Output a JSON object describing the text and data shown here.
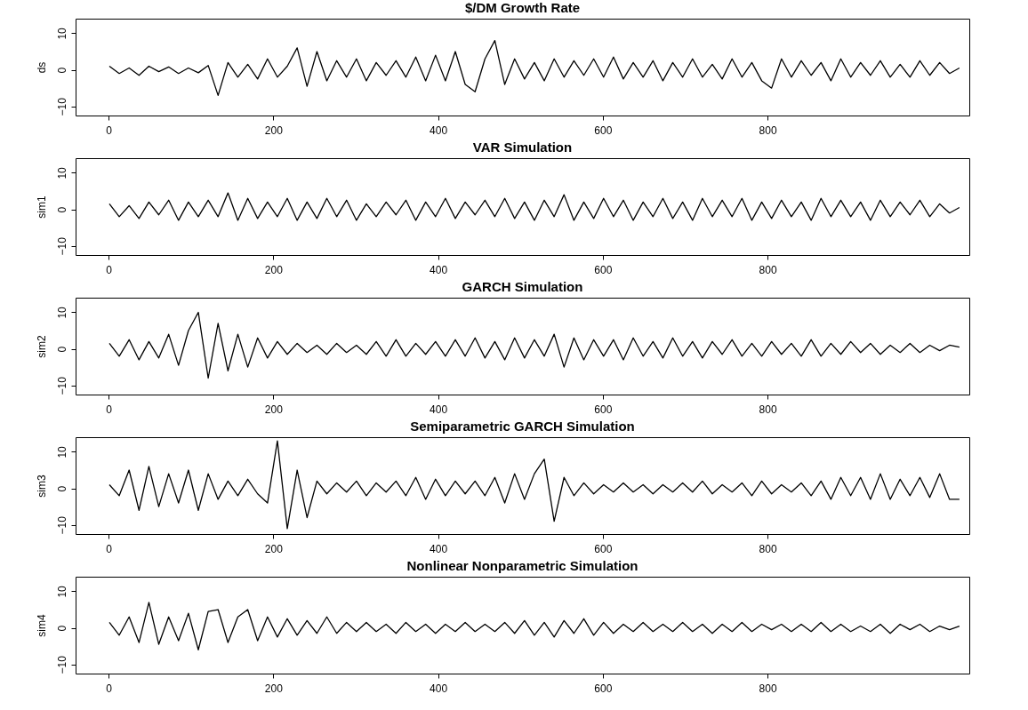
{
  "chart_data": [
    {
      "type": "line",
      "title": "$/DM Growth Rate",
      "ylabel": "ds",
      "color": "#000000",
      "xlim": [
        -40,
        1045
      ],
      "xticks": [
        0,
        200,
        400,
        600,
        800
      ],
      "ylim": [
        -12.5,
        14
      ],
      "yticks": [
        -10,
        0,
        10
      ],
      "x": [
        1,
        13,
        25,
        37,
        49,
        61,
        73,
        85,
        97,
        109,
        121,
        133,
        145,
        157,
        169,
        181,
        193,
        205,
        217,
        229,
        241,
        253,
        265,
        277,
        289,
        301,
        313,
        325,
        337,
        349,
        361,
        373,
        385,
        397,
        409,
        421,
        433,
        445,
        457,
        469,
        481,
        493,
        505,
        517,
        529,
        541,
        553,
        565,
        577,
        589,
        601,
        613,
        625,
        637,
        649,
        661,
        673,
        685,
        697,
        709,
        721,
        733,
        745,
        757,
        769,
        781,
        793,
        805,
        817,
        829,
        841,
        853,
        865,
        877,
        889,
        901,
        913,
        925,
        937,
        949,
        961,
        973,
        985,
        997,
        1009,
        1021,
        1033
      ],
      "values": [
        1,
        -1,
        0.5,
        -1.5,
        1,
        -0.5,
        0.8,
        -1,
        0.5,
        -0.8,
        1.2,
        -7,
        2,
        -2,
        1.5,
        -2.5,
        3,
        -2,
        1,
        6,
        -4.5,
        5,
        -3,
        2.5,
        -2,
        3,
        -3,
        2,
        -1.5,
        2.5,
        -2,
        3.5,
        -3,
        4,
        -3,
        5,
        -4,
        -6,
        3,
        8,
        -4,
        3,
        -2.5,
        2,
        -3,
        3,
        -2,
        2.5,
        -1.5,
        3,
        -2,
        3.5,
        -2.5,
        2,
        -2,
        2.5,
        -3,
        2,
        -2,
        3,
        -2,
        1.5,
        -2.5,
        3,
        -2,
        2,
        -3,
        -5,
        3,
        -2,
        2.5,
        -1.5,
        2,
        -3,
        3,
        -2,
        2,
        -1.5,
        2.5,
        -2,
        1.5,
        -2,
        2.5,
        -1.5,
        2,
        -1,
        0.5
      ]
    },
    {
      "type": "line",
      "title": "VAR Simulation",
      "ylabel": "sim1",
      "color": "#000000",
      "xlim": [
        -40,
        1045
      ],
      "xticks": [
        0,
        200,
        400,
        600,
        800
      ],
      "ylim": [
        -12.5,
        14
      ],
      "yticks": [
        -10,
        0,
        10
      ],
      "x": [
        1,
        13,
        25,
        37,
        49,
        61,
        73,
        85,
        97,
        109,
        121,
        133,
        145,
        157,
        169,
        181,
        193,
        205,
        217,
        229,
        241,
        253,
        265,
        277,
        289,
        301,
        313,
        325,
        337,
        349,
        361,
        373,
        385,
        397,
        409,
        421,
        433,
        445,
        457,
        469,
        481,
        493,
        505,
        517,
        529,
        541,
        553,
        565,
        577,
        589,
        601,
        613,
        625,
        637,
        649,
        661,
        673,
        685,
        697,
        709,
        721,
        733,
        745,
        757,
        769,
        781,
        793,
        805,
        817,
        829,
        841,
        853,
        865,
        877,
        889,
        901,
        913,
        925,
        937,
        949,
        961,
        973,
        985,
        997,
        1009,
        1021,
        1033
      ],
      "values": [
        1.5,
        -2,
        1,
        -2.5,
        2,
        -1.5,
        2.5,
        -3,
        2,
        -2,
        2.5,
        -2,
        4.5,
        -3,
        3,
        -2.5,
        2,
        -2,
        3,
        -3,
        2,
        -2.5,
        3,
        -2,
        2.5,
        -3,
        1.5,
        -2,
        2,
        -1.5,
        2.5,
        -3,
        2,
        -2,
        3,
        -2.5,
        2,
        -1.5,
        2.5,
        -2,
        3,
        -2.5,
        2,
        -3,
        2.5,
        -2,
        4,
        -3,
        2,
        -2.5,
        3,
        -2,
        2.5,
        -3,
        2,
        -2,
        3,
        -2.5,
        2,
        -3,
        3,
        -2,
        2.5,
        -2,
        3,
        -3,
        2,
        -2.5,
        2.5,
        -2,
        2,
        -3,
        3,
        -2,
        2.5,
        -2,
        2,
        -3,
        2.5,
        -2,
        2,
        -1.5,
        2.5,
        -2,
        1.5,
        -1,
        0.5
      ]
    },
    {
      "type": "line",
      "title": "GARCH Simulation",
      "ylabel": "sim2",
      "color": "#000000",
      "xlim": [
        -40,
        1045
      ],
      "xticks": [
        0,
        200,
        400,
        600,
        800
      ],
      "ylim": [
        -12.5,
        14
      ],
      "yticks": [
        -10,
        0,
        10
      ],
      "x": [
        1,
        13,
        25,
        37,
        49,
        61,
        73,
        85,
        97,
        109,
        121,
        133,
        145,
        157,
        169,
        181,
        193,
        205,
        217,
        229,
        241,
        253,
        265,
        277,
        289,
        301,
        313,
        325,
        337,
        349,
        361,
        373,
        385,
        397,
        409,
        421,
        433,
        445,
        457,
        469,
        481,
        493,
        505,
        517,
        529,
        541,
        553,
        565,
        577,
        589,
        601,
        613,
        625,
        637,
        649,
        661,
        673,
        685,
        697,
        709,
        721,
        733,
        745,
        757,
        769,
        781,
        793,
        805,
        817,
        829,
        841,
        853,
        865,
        877,
        889,
        901,
        913,
        925,
        937,
        949,
        961,
        973,
        985,
        997,
        1009,
        1021,
        1033
      ],
      "values": [
        1.5,
        -2,
        2.5,
        -3,
        2,
        -2.5,
        4,
        -4.5,
        5,
        10,
        -8,
        7,
        -6,
        4,
        -5,
        3,
        -2.5,
        2,
        -1.5,
        1.5,
        -1,
        1,
        -1.5,
        1.5,
        -1,
        1,
        -1.5,
        2,
        -2,
        2.5,
        -2,
        1.5,
        -1.5,
        2,
        -2,
        2.5,
        -2,
        3,
        -2.5,
        2,
        -3,
        3,
        -2.5,
        2.5,
        -2,
        4,
        -5,
        3,
        -3,
        2.5,
        -2,
        2.5,
        -3,
        3,
        -2,
        2,
        -2.5,
        3,
        -2,
        2,
        -2.5,
        2,
        -1.5,
        2.5,
        -2,
        1.5,
        -2,
        2,
        -1.5,
        1.5,
        -2,
        2.5,
        -2,
        1.5,
        -1.5,
        2,
        -1,
        1.5,
        -1.5,
        1,
        -1,
        1.5,
        -1,
        1,
        -0.5,
        1,
        0.5
      ]
    },
    {
      "type": "line",
      "title": "Semiparametric GARCH Simulation",
      "ylabel": "sim3",
      "color": "#000000",
      "xlim": [
        -40,
        1045
      ],
      "xticks": [
        0,
        200,
        400,
        600,
        800
      ],
      "ylim": [
        -12.5,
        14
      ],
      "yticks": [
        -10,
        0,
        10
      ],
      "x": [
        1,
        13,
        25,
        37,
        49,
        61,
        73,
        85,
        97,
        109,
        121,
        133,
        145,
        157,
        169,
        181,
        193,
        205,
        217,
        229,
        241,
        253,
        265,
        277,
        289,
        301,
        313,
        325,
        337,
        349,
        361,
        373,
        385,
        397,
        409,
        421,
        433,
        445,
        457,
        469,
        481,
        493,
        505,
        517,
        529,
        541,
        553,
        565,
        577,
        589,
        601,
        613,
        625,
        637,
        649,
        661,
        673,
        685,
        697,
        709,
        721,
        733,
        745,
        757,
        769,
        781,
        793,
        805,
        817,
        829,
        841,
        853,
        865,
        877,
        889,
        901,
        913,
        925,
        937,
        949,
        961,
        973,
        985,
        997,
        1009,
        1021,
        1033
      ],
      "values": [
        1,
        -2,
        5,
        -6,
        6,
        -5,
        4,
        -4,
        5,
        -6,
        4,
        -3,
        2,
        -2,
        2.5,
        -1.5,
        -4,
        13,
        -11,
        5,
        -8,
        2,
        -1.5,
        1.5,
        -1,
        2,
        -2,
        1.5,
        -1,
        2,
        -2,
        3,
        -3,
        2.5,
        -2,
        2,
        -1.5,
        2,
        -2,
        3,
        -4,
        4,
        -3,
        4,
        8,
        -9,
        3,
        -2,
        1.5,
        -1.5,
        1,
        -1,
        1.5,
        -1,
        1,
        -1.5,
        1,
        -1,
        1.5,
        -1,
        2,
        -1.5,
        1,
        -1,
        1.5,
        -2,
        2,
        -1.5,
        1,
        -1,
        1.5,
        -2,
        2,
        -3,
        3,
        -2,
        3,
        -3,
        4,
        -3,
        2.5,
        -2,
        3,
        -2.5,
        4,
        -3,
        -3
      ]
    },
    {
      "type": "line",
      "title": "Nonlinear Nonparametric Simulation",
      "ylabel": "sim4",
      "color": "#000000",
      "xlim": [
        -40,
        1045
      ],
      "xticks": [
        0,
        200,
        400,
        600,
        800
      ],
      "ylim": [
        -12.5,
        14
      ],
      "yticks": [
        -10,
        0,
        10
      ],
      "x": [
        1,
        13,
        25,
        37,
        49,
        61,
        73,
        85,
        97,
        109,
        121,
        133,
        145,
        157,
        169,
        181,
        193,
        205,
        217,
        229,
        241,
        253,
        265,
        277,
        289,
        301,
        313,
        325,
        337,
        349,
        361,
        373,
        385,
        397,
        409,
        421,
        433,
        445,
        457,
        469,
        481,
        493,
        505,
        517,
        529,
        541,
        553,
        565,
        577,
        589,
        601,
        613,
        625,
        637,
        649,
        661,
        673,
        685,
        697,
        709,
        721,
        733,
        745,
        757,
        769,
        781,
        793,
        805,
        817,
        829,
        841,
        853,
        865,
        877,
        889,
        901,
        913,
        925,
        937,
        949,
        961,
        973,
        985,
        997,
        1009,
        1021,
        1033
      ],
      "values": [
        1.5,
        -2,
        3,
        -4,
        7,
        -4.5,
        3,
        -3.5,
        4,
        -6,
        4.5,
        5,
        -4,
        3,
        5,
        -3.5,
        3,
        -2.5,
        2.5,
        -2,
        2,
        -1.5,
        3,
        -1.5,
        1.5,
        -1,
        1.5,
        -1,
        1,
        -1.5,
        1.5,
        -1,
        1,
        -1.5,
        1,
        -1,
        1.5,
        -1,
        1,
        -1,
        1.5,
        -1.5,
        2,
        -2,
        1.5,
        -2.5,
        2,
        -1.5,
        2.5,
        -2,
        1.5,
        -1.5,
        1,
        -1,
        1.5,
        -1,
        1,
        -1,
        1.5,
        -1,
        1,
        -1.5,
        1,
        -1,
        1.5,
        -1,
        1,
        -0.5,
        1,
        -1,
        1,
        -1,
        1.5,
        -1,
        1,
        -1,
        0.5,
        -1,
        1,
        -1.5,
        1,
        -0.5,
        1,
        -1,
        0.5,
        -0.5,
        0.5
      ]
    }
  ]
}
